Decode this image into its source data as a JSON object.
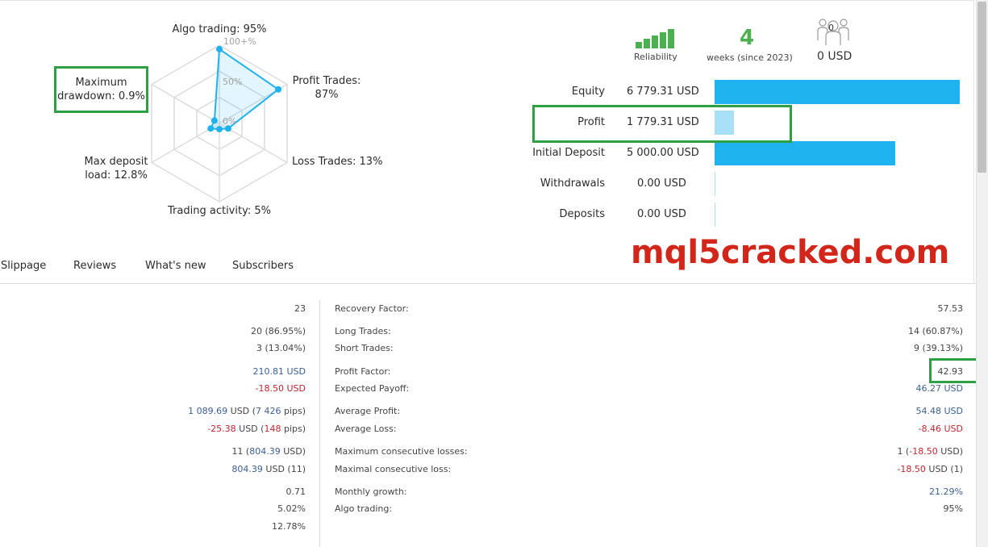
{
  "radar": {
    "axes": {
      "algo_trading": "Algo trading: 95%",
      "profit_trades_line1": "Profit Trades:",
      "profit_trades_line2": "87%",
      "loss_trades": "Loss Trades: 13%",
      "trading_activity": "Trading activity: 5%",
      "max_deposit_line1": "Max deposit",
      "max_deposit_line2": "load: 12.8%",
      "max_drawdown_line1": "Maximum",
      "max_drawdown_line2": "drawdown: 0.9%"
    },
    "ticks": {
      "t100": "100+%",
      "t50": "50%",
      "t0": "0%"
    },
    "values_percent": {
      "algo_trading": 95,
      "profit_trades": 87,
      "loss_trades": 13,
      "trading_activity": 5,
      "max_deposit_load": 12.8,
      "max_drawdown": 0.9
    }
  },
  "stats_header": {
    "reliability_label": "Reliability",
    "reliability_bars_filled": 5,
    "weeks_value": "4",
    "weeks_label": "weeks (since 2023)",
    "subscribers_count": "0",
    "subscribers_usd": "0 USD"
  },
  "balance_bars": [
    {
      "label": "Equity",
      "value": "6 779.31 USD",
      "amount": 6779.31,
      "style": "dark"
    },
    {
      "label": "Profit",
      "value": "1 779.31 USD",
      "amount": 1779.31,
      "style": "light"
    },
    {
      "label": "Initial Deposit",
      "value": "5 000.00 USD",
      "amount": 5000.0,
      "style": "dark"
    },
    {
      "label": "Withdrawals",
      "value": "0.00 USD",
      "amount": 0,
      "style": "zero"
    },
    {
      "label": "Deposits",
      "value": "0.00 USD",
      "amount": 0,
      "style": "zero"
    }
  ],
  "watermark": "mql5cracked.com",
  "tabs": [
    "Slippage",
    "Reviews",
    "What's new",
    "Subscribers"
  ],
  "left_values": {
    "v1": "23",
    "v2": "20 (86.95%)",
    "v3": "3 (13.04%)",
    "v4": "210.81 USD",
    "v5": "-18.50 USD",
    "v6a": "1 089.69",
    "v6b": " USD (",
    "v6c": "7 426",
    "v6d": " pips)",
    "v7a": "-25.38",
    "v7b": " USD (",
    "v7c": "148",
    "v7d": " pips)",
    "v8a": "11 (",
    "v8b": "804.39",
    "v8c": " USD)",
    "v9a": "804.39",
    "v9b": " USD (11)",
    "v10": "0.71",
    "v11": "5.02%",
    "v12": "12.78%"
  },
  "right_stats": [
    {
      "label": "Recovery Factor:",
      "value": "57.53",
      "color": "normal"
    },
    {
      "label": "Long Trades:",
      "value": "14 (60.87%)",
      "color": "normal"
    },
    {
      "label": "Short Trades:",
      "value": "9 (39.13%)",
      "color": "normal"
    },
    {
      "label": "Profit Factor:",
      "value": "42.93",
      "color": "normal"
    },
    {
      "label": "Expected Payoff:",
      "value": "46.27 USD",
      "color": "blue"
    },
    {
      "label": "Average Profit:",
      "value": "54.48 USD",
      "color": "blue"
    },
    {
      "label": "Average Loss:",
      "value": "-8.46 USD",
      "color": "red"
    },
    {
      "label": "Maximum consecutive losses:",
      "value_a": "1 (",
      "value_b": "-18.50",
      "value_c": " USD)",
      "color": "mixed"
    },
    {
      "label": "Maximal consecutive loss:",
      "value_a": "-18.50",
      "value_b": " USD (1)",
      "color": "mixed2"
    },
    {
      "label": "Monthly growth:",
      "value": "21.29%",
      "color": "blue"
    },
    {
      "label": "Algo trading:",
      "value": "95%",
      "color": "normal"
    }
  ]
}
